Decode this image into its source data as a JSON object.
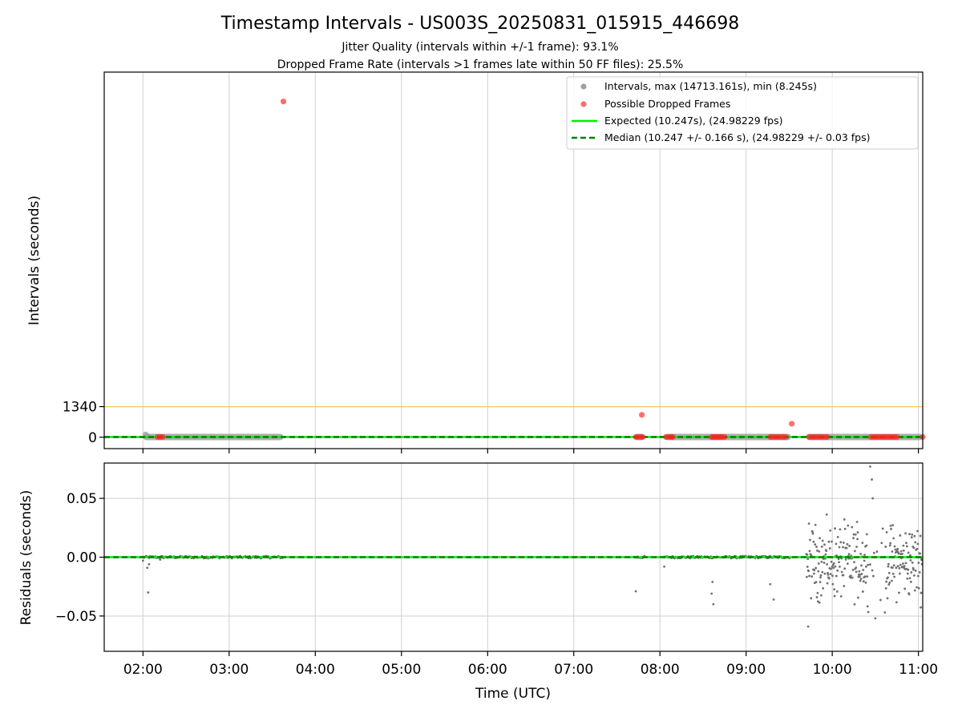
{
  "chart_data": [
    {
      "type": "scatter",
      "title": "Timestamp Intervals - US003S_20250831_015915_446698",
      "subtitle_lines": [
        "Jitter Quality (intervals within +/-1 frame): 93.1%",
        "Dropped Frame Rate (intervals >1 frames late within 50 FF files): 25.5%"
      ],
      "xlabel": "",
      "ylabel": "Intervals (seconds)",
      "x_unit": "hours UTC",
      "xlim": [
        1.55,
        11.05
      ],
      "ylim": [
        -500,
        16000
      ],
      "yticks": [
        0,
        1340
      ],
      "ytick_labels": [
        "0",
        "1340"
      ],
      "grid": true,
      "legend_position": "top-right",
      "threshold_line": {
        "y": 1340,
        "color": "#f5c85a"
      },
      "series": [
        {
          "name": "Intervals, max (14713.161s), min (8.245s)",
          "kind": "points",
          "color": "#a0a0a0",
          "segments": [
            [
              2.0,
              3.63
            ],
            [
              7.7,
              7.82
            ],
            [
              8.05,
              9.52
            ],
            [
              9.7,
              11.05
            ]
          ],
          "points": [
            [
              2.03,
              120
            ],
            [
              2.05,
              60
            ]
          ]
        },
        {
          "name": "Possible Dropped Frames",
          "kind": "points",
          "color": "#ff2020",
          "points": [
            [
              2.17,
              10
            ],
            [
              2.2,
              10
            ],
            [
              2.23,
              10
            ],
            [
              3.63,
              14713.161
            ],
            [
              7.72,
              10
            ],
            [
              7.75,
              10
            ],
            [
              7.78,
              10
            ],
            [
              7.8,
              10
            ],
            [
              7.79,
              980
            ],
            [
              8.07,
              10
            ],
            [
              8.1,
              10
            ],
            [
              8.13,
              10
            ],
            [
              8.15,
              10
            ],
            [
              8.6,
              10
            ],
            [
              8.62,
              10
            ],
            [
              8.64,
              10
            ],
            [
              8.66,
              10
            ],
            [
              8.68,
              10
            ],
            [
              8.7,
              10
            ],
            [
              8.72,
              10
            ],
            [
              8.75,
              10
            ],
            [
              9.28,
              10
            ],
            [
              9.31,
              10
            ],
            [
              9.34,
              10
            ],
            [
              9.37,
              10
            ],
            [
              9.4,
              10
            ],
            [
              9.43,
              10
            ],
            [
              9.46,
              10
            ],
            [
              9.53,
              590
            ],
            [
              9.73,
              10
            ],
            [
              9.76,
              10
            ],
            [
              9.79,
              10
            ],
            [
              9.82,
              10
            ],
            [
              9.85,
              10
            ],
            [
              9.88,
              10
            ],
            [
              9.91,
              10
            ],
            [
              9.94,
              10
            ],
            [
              10.45,
              10
            ],
            [
              10.48,
              10
            ],
            [
              10.51,
              10
            ],
            [
              10.54,
              10
            ],
            [
              10.57,
              10
            ],
            [
              10.6,
              10
            ],
            [
              10.63,
              10
            ],
            [
              10.66,
              10
            ],
            [
              10.69,
              10
            ],
            [
              10.72,
              10
            ],
            [
              10.75,
              10
            ],
            [
              11.05,
              10
            ]
          ]
        },
        {
          "name": "Expected (10.247s), (24.98229 fps)",
          "kind": "hline",
          "y": 10.247,
          "color": "#00ee00"
        },
        {
          "name": "Median (10.247 +/- 0.166 s), (24.98229 +/- 0.03 fps)",
          "kind": "hline-dashed",
          "y": 10.247,
          "color": "#008000"
        }
      ]
    },
    {
      "type": "scatter",
      "title": "",
      "xlabel": "Time (UTC)",
      "ylabel": "Residuals (seconds)",
      "xlim": [
        1.55,
        11.05
      ],
      "ylim": [
        -0.08,
        0.08
      ],
      "yticks": [
        -0.05,
        0,
        0.05
      ],
      "ytick_labels": [
        "−0.05",
        "0.00",
        "0.05"
      ],
      "xticks": [
        2,
        3,
        4,
        5,
        6,
        7,
        8,
        9,
        10,
        11
      ],
      "xtick_labels": [
        "02:00",
        "03:00",
        "04:00",
        "05:00",
        "06:00",
        "07:00",
        "08:00",
        "09:00",
        "10:00",
        "11:00"
      ],
      "grid": true,
      "series": [
        {
          "name": "",
          "kind": "points",
          "color": "#707070",
          "segments": [
            [
              2.0,
              3.63
            ],
            [
              7.7,
              7.82
            ],
            [
              8.05,
              9.52
            ],
            [
              9.7,
              11.05
            ]
          ],
          "points": [
            [
              2.0,
              -0.003
            ],
            [
              2.05,
              -0.009
            ],
            [
              2.06,
              -0.03
            ],
            [
              2.07,
              -0.006
            ],
            [
              2.2,
              -0.002
            ],
            [
              7.72,
              -0.029
            ],
            [
              8.05,
              -0.008
            ],
            [
              8.6,
              -0.031
            ],
            [
              8.61,
              -0.021
            ],
            [
              8.62,
              -0.04
            ],
            [
              9.28,
              -0.023
            ],
            [
              9.32,
              -0.036
            ],
            [
              9.72,
              -0.059
            ],
            [
              10.44,
              0.077
            ],
            [
              10.46,
              0.066
            ],
            [
              10.47,
              0.05
            ],
            [
              10.61,
              -0.047
            ],
            [
              10.5,
              -0.052
            ]
          ]
        },
        {
          "name": "",
          "kind": "hline",
          "y": 0,
          "color": "#00ee00"
        },
        {
          "name": "",
          "kind": "hline-dashed",
          "y": 0,
          "color": "#008000"
        }
      ]
    }
  ]
}
